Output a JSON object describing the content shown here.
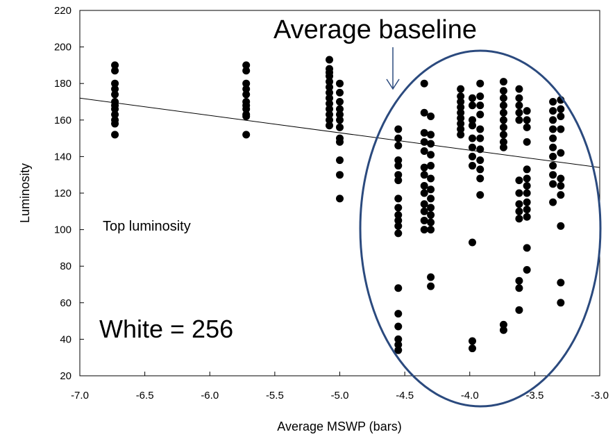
{
  "chart_data": {
    "type": "scatter",
    "xlabel": "Average MSWP (bars)",
    "ylabel": "Luminosity",
    "xlim": [
      -7.0,
      -3.0
    ],
    "ylim": [
      20,
      220
    ],
    "xticks": [
      "-7.0",
      "-6.5",
      "-6.0",
      "-5.5",
      "-5.0",
      "-4.5",
      "-4.0",
      "-3.5",
      "-3.0"
    ],
    "yticks": [
      "20",
      "40",
      "60",
      "80",
      "100",
      "120",
      "140",
      "160",
      "180",
      "200",
      "220"
    ],
    "grid": false,
    "series": [
      {
        "marker": "filled-circle",
        "color": "#000000",
        "points": [
          [
            -6.73,
            190
          ],
          [
            -6.73,
            187
          ],
          [
            -6.73,
            180
          ],
          [
            -6.73,
            177
          ],
          [
            -6.73,
            174
          ],
          [
            -6.73,
            170
          ],
          [
            -6.73,
            168
          ],
          [
            -6.73,
            166
          ],
          [
            -6.73,
            163
          ],
          [
            -6.73,
            160
          ],
          [
            -6.73,
            158
          ],
          [
            -6.73,
            152
          ],
          [
            -5.72,
            190
          ],
          [
            -5.72,
            187
          ],
          [
            -5.72,
            180
          ],
          [
            -5.72,
            177
          ],
          [
            -5.72,
            174
          ],
          [
            -5.72,
            170
          ],
          [
            -5.72,
            168
          ],
          [
            -5.72,
            166
          ],
          [
            -5.72,
            163
          ],
          [
            -5.72,
            162
          ],
          [
            -5.72,
            152
          ],
          [
            -5.08,
            193
          ],
          [
            -5.08,
            188
          ],
          [
            -5.08,
            186
          ],
          [
            -5.08,
            184
          ],
          [
            -5.08,
            181
          ],
          [
            -5.08,
            178
          ],
          [
            -5.08,
            175
          ],
          [
            -5.08,
            172
          ],
          [
            -5.08,
            169
          ],
          [
            -5.08,
            166
          ],
          [
            -5.08,
            163
          ],
          [
            -5.08,
            160
          ],
          [
            -5.08,
            157
          ],
          [
            -5.0,
            180
          ],
          [
            -5.0,
            175
          ],
          [
            -5.0,
            170
          ],
          [
            -5.0,
            166
          ],
          [
            -5.0,
            163
          ],
          [
            -5.0,
            160
          ],
          [
            -5.0,
            156
          ],
          [
            -5.0,
            150
          ],
          [
            -5.0,
            148
          ],
          [
            -5.0,
            138
          ],
          [
            -5.0,
            130
          ],
          [
            -5.0,
            117
          ],
          [
            -4.55,
            155
          ],
          [
            -4.55,
            150
          ],
          [
            -4.55,
            146
          ],
          [
            -4.55,
            138
          ],
          [
            -4.55,
            135
          ],
          [
            -4.55,
            130
          ],
          [
            -4.55,
            127
          ],
          [
            -4.55,
            117
          ],
          [
            -4.55,
            112
          ],
          [
            -4.55,
            108
          ],
          [
            -4.55,
            105
          ],
          [
            -4.55,
            102
          ],
          [
            -4.55,
            98
          ],
          [
            -4.55,
            68
          ],
          [
            -4.55,
            54
          ],
          [
            -4.55,
            47
          ],
          [
            -4.55,
            40
          ],
          [
            -4.55,
            37
          ],
          [
            -4.55,
            34
          ],
          [
            -4.35,
            180
          ],
          [
            -4.35,
            164
          ],
          [
            -4.35,
            153
          ],
          [
            -4.35,
            148
          ],
          [
            -4.35,
            143
          ],
          [
            -4.35,
            134
          ],
          [
            -4.35,
            130
          ],
          [
            -4.35,
            124
          ],
          [
            -4.35,
            120
          ],
          [
            -4.35,
            114
          ],
          [
            -4.35,
            110
          ],
          [
            -4.35,
            105
          ],
          [
            -4.35,
            100
          ],
          [
            -4.3,
            162
          ],
          [
            -4.3,
            152
          ],
          [
            -4.3,
            147
          ],
          [
            -4.3,
            141
          ],
          [
            -4.3,
            135
          ],
          [
            -4.3,
            128
          ],
          [
            -4.3,
            122
          ],
          [
            -4.3,
            117
          ],
          [
            -4.3,
            112
          ],
          [
            -4.3,
            108
          ],
          [
            -4.3,
            104
          ],
          [
            -4.3,
            100
          ],
          [
            -4.3,
            74
          ],
          [
            -4.3,
            69
          ],
          [
            -4.07,
            177
          ],
          [
            -4.07,
            173
          ],
          [
            -4.07,
            170
          ],
          [
            -4.07,
            167
          ],
          [
            -4.07,
            164
          ],
          [
            -4.07,
            161
          ],
          [
            -4.07,
            158
          ],
          [
            -4.07,
            155
          ],
          [
            -4.07,
            152
          ],
          [
            -3.98,
            172
          ],
          [
            -3.98,
            168
          ],
          [
            -3.98,
            160
          ],
          [
            -3.98,
            157
          ],
          [
            -3.98,
            150
          ],
          [
            -3.98,
            145
          ],
          [
            -3.98,
            140
          ],
          [
            -3.98,
            135
          ],
          [
            -3.98,
            93
          ],
          [
            -3.98,
            39
          ],
          [
            -3.98,
            35
          ],
          [
            -3.92,
            180
          ],
          [
            -3.92,
            173
          ],
          [
            -3.92,
            168
          ],
          [
            -3.92,
            163
          ],
          [
            -3.92,
            155
          ],
          [
            -3.92,
            150
          ],
          [
            -3.92,
            144
          ],
          [
            -3.92,
            138
          ],
          [
            -3.92,
            133
          ],
          [
            -3.92,
            128
          ],
          [
            -3.92,
            119
          ],
          [
            -3.74,
            181
          ],
          [
            -3.74,
            176
          ],
          [
            -3.74,
            172
          ],
          [
            -3.74,
            168
          ],
          [
            -3.74,
            164
          ],
          [
            -3.74,
            160
          ],
          [
            -3.74,
            156
          ],
          [
            -3.74,
            152
          ],
          [
            -3.74,
            148
          ],
          [
            -3.74,
            145
          ],
          [
            -3.74,
            48
          ],
          [
            -3.74,
            45
          ],
          [
            -3.62,
            177
          ],
          [
            -3.62,
            172
          ],
          [
            -3.62,
            168
          ],
          [
            -3.62,
            164
          ],
          [
            -3.62,
            160
          ],
          [
            -3.62,
            127
          ],
          [
            -3.62,
            120
          ],
          [
            -3.62,
            114
          ],
          [
            -3.62,
            110
          ],
          [
            -3.62,
            106
          ],
          [
            -3.62,
            72
          ],
          [
            -3.62,
            68
          ],
          [
            -3.62,
            56
          ],
          [
            -3.56,
            165
          ],
          [
            -3.56,
            160
          ],
          [
            -3.56,
            156
          ],
          [
            -3.56,
            148
          ],
          [
            -3.56,
            133
          ],
          [
            -3.56,
            128
          ],
          [
            -3.56,
            124
          ],
          [
            -3.56,
            120
          ],
          [
            -3.56,
            115
          ],
          [
            -3.56,
            111
          ],
          [
            -3.56,
            107
          ],
          [
            -3.56,
            90
          ],
          [
            -3.56,
            78
          ],
          [
            -3.36,
            170
          ],
          [
            -3.36,
            165
          ],
          [
            -3.36,
            160
          ],
          [
            -3.36,
            155
          ],
          [
            -3.36,
            150
          ],
          [
            -3.36,
            145
          ],
          [
            -3.36,
            140
          ],
          [
            -3.36,
            135
          ],
          [
            -3.36,
            130
          ],
          [
            -3.36,
            125
          ],
          [
            -3.36,
            115
          ],
          [
            -3.3,
            171
          ],
          [
            -3.3,
            166
          ],
          [
            -3.3,
            162
          ],
          [
            -3.3,
            155
          ],
          [
            -3.3,
            142
          ],
          [
            -3.3,
            128
          ],
          [
            -3.3,
            124
          ],
          [
            -3.3,
            119
          ],
          [
            -3.3,
            102
          ],
          [
            -3.3,
            71
          ],
          [
            -3.3,
            60
          ]
        ]
      }
    ],
    "trendline": {
      "x": [
        -7.0,
        -3.0
      ],
      "y": [
        172,
        134
      ],
      "color": "#000000"
    },
    "annotations": {
      "top_label": "Top luminosity",
      "white_label": "White = 256",
      "baseline_label": "Average baseline"
    },
    "highlight_ellipse": {
      "color": "#2b4a7e"
    }
  }
}
